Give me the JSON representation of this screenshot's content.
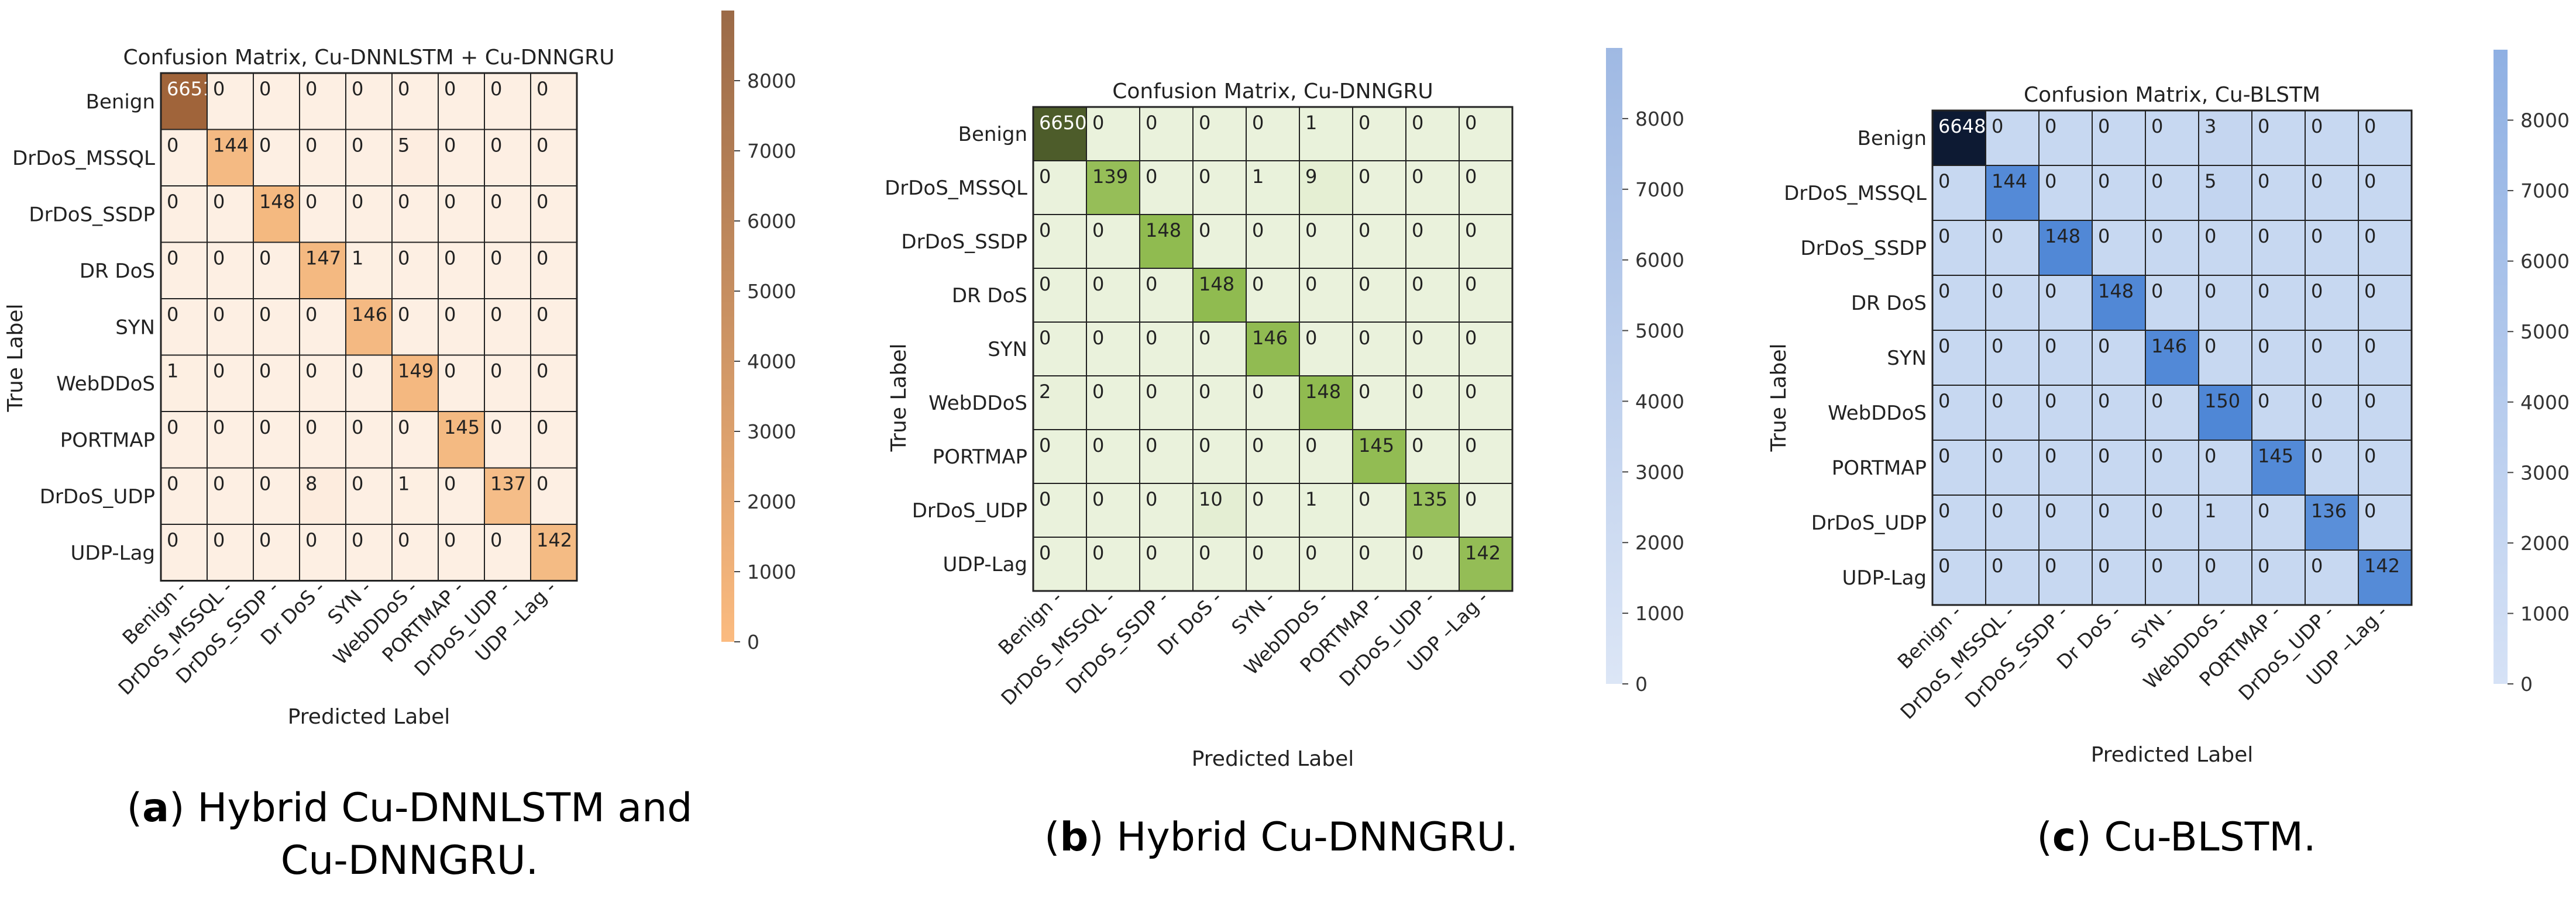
{
  "chart_data": [
    {
      "type": "heatmap",
      "title": "Confusion Matrix, Cu-DNNLSTM + Cu-DNNGRU",
      "xlabel": "Predicted Label",
      "ylabel": "True Label",
      "ylabels": [
        "Benign",
        "DrDoS_MSSQL",
        "DrDoS_SSDP",
        "DR DoS",
        "SYN",
        "WebDDoS",
        "PORTMAP",
        "DrDoS_UDP",
        "UDP-Lag"
      ],
      "xlabels": [
        "Benign -",
        "DrDoS_MSSQL -",
        "DrDoS_SSDP -",
        "Dr DoS -",
        "SYN -",
        "WebDDoS -",
        "PORTMAP -",
        "DrDoS_UDP -",
        "UDP –Lag -"
      ],
      "matrix": [
        [
          6651,
          0,
          0,
          0,
          0,
          0,
          0,
          0,
          0
        ],
        [
          0,
          144,
          0,
          0,
          0,
          5,
          0,
          0,
          0
        ],
        [
          0,
          0,
          148,
          0,
          0,
          0,
          0,
          0,
          0
        ],
        [
          0,
          0,
          0,
          147,
          1,
          0,
          0,
          0,
          0
        ],
        [
          0,
          0,
          0,
          0,
          146,
          0,
          0,
          0,
          0
        ],
        [
          1,
          0,
          0,
          0,
          0,
          149,
          0,
          0,
          0
        ],
        [
          0,
          0,
          0,
          0,
          0,
          0,
          145,
          0,
          0
        ],
        [
          0,
          0,
          0,
          8,
          0,
          1,
          0,
          137,
          0
        ],
        [
          0,
          0,
          0,
          0,
          0,
          0,
          0,
          0,
          142
        ]
      ],
      "colorbar": {
        "ticks": [
          0,
          1000,
          2000,
          3000,
          4000,
          5000,
          6000,
          7000,
          8000
        ],
        "vmin": 0,
        "vmax": 9000
      },
      "colors": {
        "low": "#fdefe3",
        "mid": "#f4b87f",
        "high": "#a0643a",
        "bar_low": "#fbbb80",
        "bar_high": "#9b6a47"
      }
    },
    {
      "type": "heatmap",
      "title": "Confusion Matrix, Cu-DNNGRU",
      "xlabel": "Predicted Label",
      "ylabel": "True Label",
      "ylabels": [
        "Benign",
        "DrDoS_MSSQL",
        "DrDoS_SSDP",
        "DR DoS",
        "SYN",
        "WebDDoS",
        "PORTMAP",
        "DrDoS_UDP",
        "UDP-Lag"
      ],
      "xlabels": [
        "Benign -",
        "DrDoS_MSSQL -",
        "DrDoS_SSDP -",
        "Dr DoS -",
        "SYN -",
        "WebDDoS -",
        "PORTMAP -",
        "DrDoS_UDP -",
        "UDP –Lag -"
      ],
      "matrix": [
        [
          6650,
          0,
          0,
          0,
          0,
          1,
          0,
          0,
          0
        ],
        [
          0,
          139,
          0,
          0,
          1,
          9,
          0,
          0,
          0
        ],
        [
          0,
          0,
          148,
          0,
          0,
          0,
          0,
          0,
          0
        ],
        [
          0,
          0,
          0,
          148,
          0,
          0,
          0,
          0,
          0
        ],
        [
          0,
          0,
          0,
          0,
          146,
          0,
          0,
          0,
          0
        ],
        [
          2,
          0,
          0,
          0,
          0,
          148,
          0,
          0,
          0
        ],
        [
          0,
          0,
          0,
          0,
          0,
          0,
          145,
          0,
          0
        ],
        [
          0,
          0,
          0,
          10,
          0,
          1,
          0,
          135,
          0
        ],
        [
          0,
          0,
          0,
          0,
          0,
          0,
          0,
          0,
          142
        ]
      ],
      "colorbar": {
        "ticks": [
          0,
          1000,
          2000,
          3000,
          4000,
          5000,
          6000,
          7000,
          8000
        ],
        "vmin": 0,
        "vmax": 9000
      },
      "colors": {
        "low": "#eaf2dc",
        "mid": "#8fba4e",
        "high": "#4d5c2a",
        "bar_low": "#dce6f6",
        "bar_high": "#9fb9e3"
      }
    },
    {
      "type": "heatmap",
      "title": "Confusion Matrix, Cu-BLSTM",
      "xlabel": "Predicted Label",
      "ylabel": "True Label",
      "ylabels": [
        "Benign",
        "DrDoS_MSSQL",
        "DrDoS_SSDP",
        "DR DoS",
        "SYN",
        "WebDDoS",
        "PORTMAP",
        "DrDoS_UDP",
        "UDP-Lag"
      ],
      "xlabels": [
        "Benign -",
        "DrDoS_MSSQL -",
        "DrDoS_SSDP -",
        "Dr DoS -",
        "SYN -",
        "WebDDoS -",
        "PORTMAP -",
        "DrDoS_UDP -",
        "UDP –Lag -"
      ],
      "matrix": [
        [
          6648,
          0,
          0,
          0,
          0,
          3,
          0,
          0,
          0
        ],
        [
          0,
          144,
          0,
          0,
          0,
          5,
          0,
          0,
          0
        ],
        [
          0,
          0,
          148,
          0,
          0,
          0,
          0,
          0,
          0
        ],
        [
          0,
          0,
          0,
          148,
          0,
          0,
          0,
          0,
          0
        ],
        [
          0,
          0,
          0,
          0,
          146,
          0,
          0,
          0,
          0
        ],
        [
          0,
          0,
          0,
          0,
          0,
          150,
          0,
          0,
          0
        ],
        [
          0,
          0,
          0,
          0,
          0,
          0,
          145,
          0,
          0
        ],
        [
          0,
          0,
          0,
          0,
          0,
          1,
          0,
          136,
          0
        ],
        [
          0,
          0,
          0,
          0,
          0,
          0,
          0,
          0,
          142
        ]
      ],
      "colorbar": {
        "ticks": [
          0,
          1000,
          2000,
          3000,
          4000,
          5000,
          6000,
          7000,
          8000
        ],
        "vmin": 0,
        "vmax": 9000
      },
      "colors": {
        "low": "#c7d8f1",
        "mid": "#4f87d6",
        "high": "#0d1a33",
        "bar_low": "#d6e2f6",
        "bar_high": "#8fb0e3"
      }
    }
  ],
  "captions": [
    {
      "label": "a",
      "text_line1": " Hybrid Cu-DNNLSTM and",
      "text_line2": "Cu-DNNGRU."
    },
    {
      "label": "b",
      "text_line1": " Hybrid Cu-DNNGRU.",
      "text_line2": ""
    },
    {
      "label": "c",
      "text_line1": " Cu-BLSTM.",
      "text_line2": ""
    }
  ]
}
